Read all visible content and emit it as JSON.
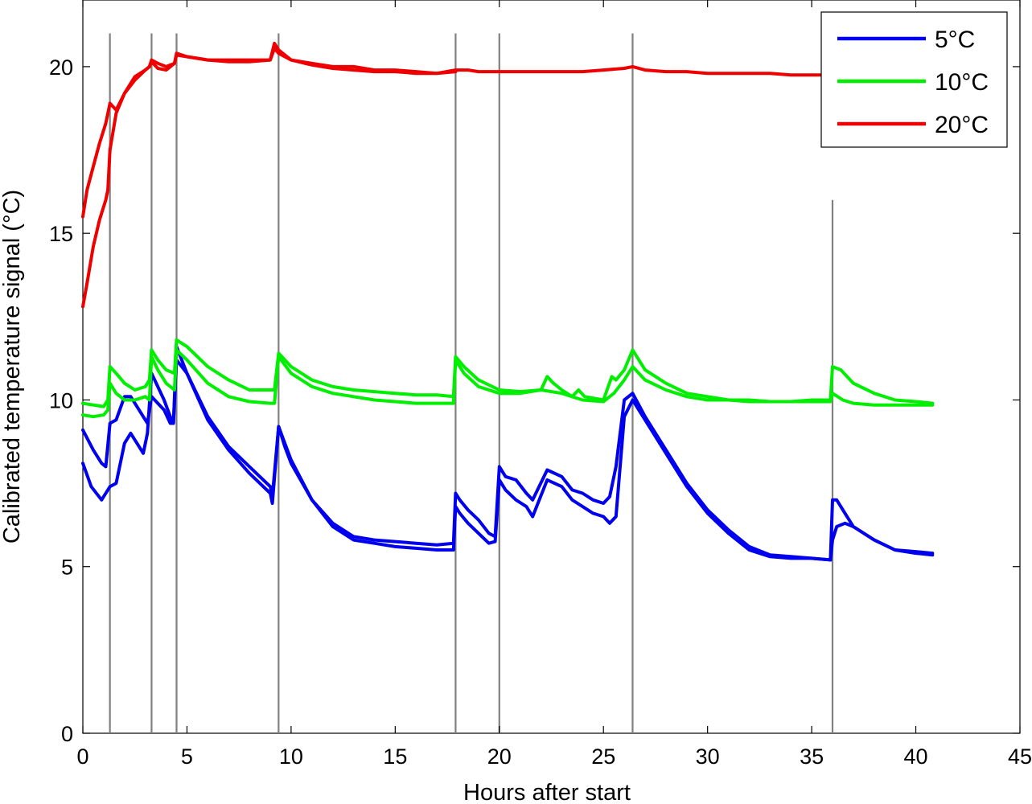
{
  "chart_data": {
    "type": "line",
    "xlabel": "Hours after start",
    "ylabel": "Calibrated temperature signal (°C)",
    "xlim": [
      0,
      45
    ],
    "ylim": [
      0,
      22
    ],
    "xticks": [
      0,
      5,
      10,
      15,
      20,
      25,
      30,
      35,
      40,
      45
    ],
    "yticks": [
      0,
      5,
      10,
      15,
      20
    ],
    "grid": false,
    "legend_position": "top-right",
    "event_lines": [
      {
        "x": 1.3,
        "y_top": 21.0
      },
      {
        "x": 3.3,
        "y_top": 21.0
      },
      {
        "x": 4.5,
        "y_top": 21.0
      },
      {
        "x": 9.4,
        "y_top": 21.0
      },
      {
        "x": 17.9,
        "y_top": 21.0
      },
      {
        "x": 20.0,
        "y_top": 21.0
      },
      {
        "x": 26.4,
        "y_top": 21.0
      },
      {
        "x": 36.0,
        "y_top": 16.0
      }
    ],
    "event_line_color": "#808080",
    "series": [
      {
        "name": "5°C",
        "color": "#0000ee",
        "x": [
          0,
          0.5,
          0.9,
          1.1,
          1.3,
          1.6,
          2.0,
          2.3,
          2.6,
          2.9,
          3.1,
          3.3,
          3.6,
          3.9,
          4.2,
          4.35,
          4.5,
          5,
          6,
          7,
          8,
          9.0,
          9.1,
          9.4,
          9.7,
          10,
          11,
          12,
          13,
          14,
          15,
          16,
          17,
          17.8,
          17.9,
          18.1,
          18.5,
          19,
          19.5,
          19.8,
          20.0,
          20.3,
          20.8,
          21.3,
          21.6,
          22.3,
          23,
          23.5,
          24,
          24.5,
          25,
          25.3,
          25.6,
          26.0,
          26.4,
          27,
          28,
          29,
          30,
          31,
          32,
          33,
          34,
          35,
          35.9,
          36.0,
          36.2,
          36.6,
          37,
          38,
          39,
          40,
          40.8
        ],
        "y": [
          9.1,
          8.5,
          8.1,
          8.0,
          9.3,
          9.4,
          10.1,
          10.1,
          9.8,
          9.5,
          9.3,
          10.1,
          9.9,
          9.7,
          9.3,
          9.3,
          11.2,
          10.8,
          9.5,
          8.6,
          8.0,
          7.4,
          7.1,
          9.2,
          8.7,
          8.2,
          7.0,
          6.3,
          5.9,
          5.8,
          5.75,
          5.7,
          5.65,
          5.7,
          7.2,
          7.0,
          6.7,
          6.4,
          6.0,
          5.9,
          8.0,
          7.7,
          7.6,
          7.2,
          7.0,
          7.9,
          7.7,
          7.3,
          7.2,
          7.0,
          6.9,
          7.1,
          8.0,
          10.0,
          10.2,
          9.5,
          8.5,
          7.5,
          6.7,
          6.1,
          5.6,
          5.35,
          5.3,
          5.25,
          5.2,
          7.0,
          7.0,
          6.6,
          6.2,
          5.8,
          5.5,
          5.45,
          5.4
        ]
      },
      {
        "name": "",
        "color": "#0000ee",
        "x": [
          0,
          0.4,
          0.9,
          1.1,
          1.3,
          1.6,
          2.0,
          2.3,
          2.6,
          2.9,
          3.1,
          3.3,
          3.6,
          3.9,
          4.2,
          4.35,
          4.5,
          5,
          6,
          7,
          8,
          9.0,
          9.1,
          9.4,
          9.7,
          10,
          11,
          12,
          13,
          14,
          15,
          16,
          17,
          17.8,
          17.9,
          18.1,
          18.5,
          19,
          19.5,
          19.8,
          20.0,
          20.3,
          20.8,
          21.3,
          21.6,
          22.3,
          23,
          23.5,
          24,
          24.5,
          25,
          25.3,
          25.6,
          26.0,
          26.4,
          27,
          28,
          29,
          30,
          31,
          32,
          33,
          34,
          35,
          35.9,
          36.0,
          36.2,
          36.6,
          37,
          38,
          39,
          40,
          40.8
        ],
        "y": [
          8.1,
          7.4,
          7.0,
          7.2,
          7.4,
          7.5,
          8.7,
          9.0,
          8.7,
          8.4,
          9.0,
          10.8,
          10.4,
          10.0,
          9.5,
          9.3,
          11.6,
          10.8,
          9.4,
          8.5,
          7.8,
          7.2,
          6.9,
          9.2,
          8.6,
          8.1,
          7.0,
          6.2,
          5.8,
          5.7,
          5.6,
          5.55,
          5.5,
          5.5,
          6.8,
          6.6,
          6.3,
          6.0,
          5.7,
          5.75,
          7.6,
          7.3,
          7.0,
          6.8,
          6.5,
          7.6,
          7.4,
          7.0,
          6.8,
          6.6,
          6.5,
          6.3,
          6.5,
          9.5,
          10.0,
          9.4,
          8.4,
          7.4,
          6.6,
          6.0,
          5.5,
          5.3,
          5.25,
          5.25,
          5.2,
          5.8,
          6.2,
          6.3,
          6.2,
          5.8,
          5.5,
          5.4,
          5.35
        ]
      },
      {
        "name": "10°C",
        "color": "#00ee00",
        "x": [
          0,
          0.5,
          1.0,
          1.2,
          1.3,
          1.6,
          2.0,
          2.5,
          3.0,
          3.2,
          3.3,
          3.6,
          4.0,
          4.4,
          4.5,
          5,
          6,
          7,
          8,
          9.0,
          9.2,
          9.4,
          10,
          11,
          12,
          13,
          14,
          15,
          16,
          17,
          17.8,
          17.9,
          18.3,
          19,
          20,
          21,
          22.0,
          22.3,
          22.6,
          23,
          23.5,
          23.8,
          24.1,
          25,
          25.4,
          25.6,
          26.0,
          26.4,
          27,
          28,
          29,
          30,
          31,
          32,
          33,
          34,
          35,
          35.9,
          36.0,
          36.4,
          37,
          38,
          39,
          40,
          40.8
        ],
        "y": [
          9.9,
          9.85,
          9.8,
          10.0,
          11.0,
          10.8,
          10.5,
          10.3,
          10.4,
          10.6,
          11.5,
          11.2,
          10.9,
          10.8,
          11.8,
          11.6,
          11.0,
          10.6,
          10.3,
          10.3,
          10.3,
          11.4,
          11.0,
          10.6,
          10.4,
          10.3,
          10.25,
          10.2,
          10.15,
          10.15,
          10.1,
          11.3,
          11.0,
          10.6,
          10.3,
          10.25,
          10.3,
          10.7,
          10.5,
          10.3,
          10.1,
          10.3,
          10.1,
          10.0,
          10.7,
          10.6,
          10.9,
          11.5,
          10.9,
          10.5,
          10.2,
          10.1,
          10.0,
          10.0,
          9.95,
          9.95,
          10.0,
          10.0,
          11.0,
          10.9,
          10.5,
          10.2,
          10.0,
          9.95,
          9.9
        ]
      },
      {
        "name": "",
        "color": "#00ee00",
        "x": [
          0,
          0.5,
          1.0,
          1.2,
          1.3,
          1.6,
          2.0,
          2.5,
          3.0,
          3.2,
          3.3,
          3.6,
          4.0,
          4.4,
          4.5,
          5,
          6,
          7,
          8,
          9.0,
          9.2,
          9.4,
          10,
          11,
          12,
          13,
          14,
          15,
          16,
          17,
          17.8,
          17.9,
          18.3,
          19,
          20,
          21,
          22,
          23,
          24,
          25,
          25.5,
          26.0,
          26.4,
          27,
          28,
          29,
          30,
          31,
          32,
          33,
          34,
          35,
          35.9,
          36.0,
          36.5,
          37,
          38,
          39,
          40,
          40.8
        ],
        "y": [
          9.55,
          9.5,
          9.55,
          9.7,
          10.5,
          10.2,
          10.0,
          10.0,
          10.1,
          10.0,
          11.3,
          10.9,
          10.5,
          10.3,
          11.5,
          11.2,
          10.5,
          10.1,
          9.95,
          9.9,
          9.9,
          11.3,
          10.8,
          10.4,
          10.2,
          10.1,
          10.0,
          9.95,
          9.9,
          9.9,
          9.9,
          11.2,
          10.8,
          10.4,
          10.2,
          10.2,
          10.3,
          10.2,
          10.0,
          9.95,
          10.2,
          10.6,
          11.0,
          10.6,
          10.3,
          10.1,
          10.0,
          10.0,
          9.95,
          9.95,
          9.95,
          9.95,
          9.95,
          10.2,
          10.0,
          9.9,
          9.85,
          9.85,
          9.85,
          9.85
        ]
      },
      {
        "name": "20°C",
        "color": "#ee0000",
        "x": [
          0,
          0.2,
          0.5,
          0.8,
          1.1,
          1.3,
          1.6,
          2.0,
          2.5,
          3.0,
          3.2,
          3.3,
          3.6,
          4.0,
          4.4,
          4.5,
          5,
          6,
          7,
          8,
          9.0,
          9.2,
          9.4,
          10,
          11,
          12,
          13,
          14,
          15,
          16,
          17,
          17.9,
          18.5,
          19,
          20,
          21,
          22,
          23,
          24,
          25,
          26,
          26.4,
          27,
          28,
          29,
          30,
          31,
          32,
          33,
          34,
          35,
          35.5,
          36,
          37,
          38
        ],
        "y": [
          15.5,
          16.3,
          17.0,
          17.7,
          18.3,
          18.9,
          18.7,
          19.2,
          19.7,
          19.9,
          20.0,
          20.2,
          20.1,
          20.0,
          20.1,
          20.35,
          20.3,
          20.2,
          20.2,
          20.2,
          20.2,
          20.55,
          20.4,
          20.2,
          20.1,
          20.0,
          20.0,
          19.9,
          19.9,
          19.85,
          19.8,
          19.9,
          19.9,
          19.85,
          19.85,
          19.85,
          19.85,
          19.85,
          19.85,
          19.9,
          19.95,
          20.0,
          19.9,
          19.85,
          19.85,
          19.8,
          19.8,
          19.8,
          19.8,
          19.75,
          19.75,
          19.75,
          19.7,
          19.7,
          19.7
        ]
      },
      {
        "name": "",
        "color": "#ee0000",
        "x": [
          0,
          0.2,
          0.5,
          0.8,
          1.1,
          1.2,
          1.3,
          1.6,
          2.0,
          2.5,
          3.0,
          3.2,
          3.3,
          3.6,
          4.0,
          4.4,
          4.5,
          5,
          6,
          7,
          8,
          9.0,
          9.2,
          9.4,
          10,
          11,
          12,
          13,
          14,
          15,
          16,
          17,
          17.9
        ],
        "y": [
          12.8,
          13.5,
          14.6,
          15.4,
          16.0,
          16.3,
          17.5,
          18.6,
          19.2,
          19.6,
          19.9,
          20.0,
          20.15,
          19.95,
          19.9,
          20.1,
          20.4,
          20.3,
          20.2,
          20.15,
          20.15,
          20.2,
          20.7,
          20.5,
          20.2,
          20.05,
          19.95,
          19.9,
          19.85,
          19.85,
          19.8,
          19.8,
          19.85
        ]
      }
    ]
  }
}
